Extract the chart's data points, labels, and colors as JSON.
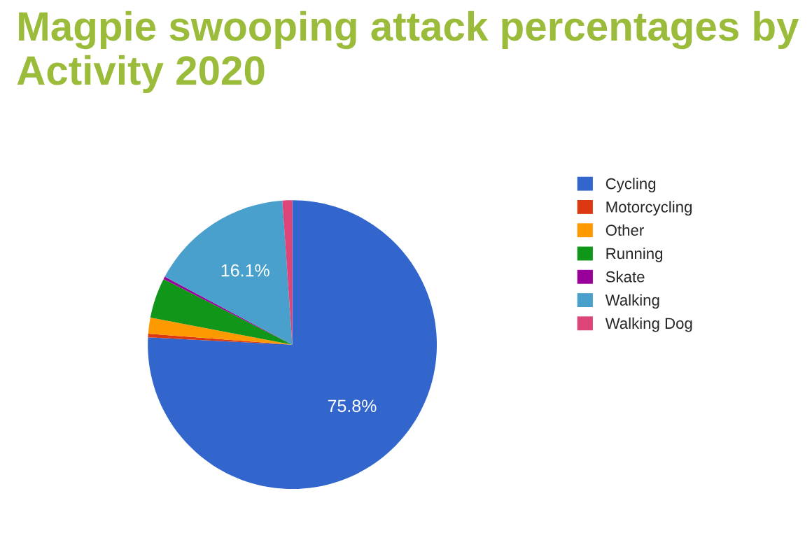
{
  "chart_data": {
    "type": "pie",
    "title": "Magpie swooping attack percentages by Activity 2020",
    "categories": [
      "Cycling",
      "Motorcycling",
      "Other",
      "Running",
      "Skate",
      "Walking",
      "Walking Dog"
    ],
    "values": [
      75.8,
      0.4,
      1.8,
      4.5,
      0.3,
      16.1,
      1.1
    ],
    "colors": [
      "#3366cc",
      "#dc3912",
      "#ff9900",
      "#109618",
      "#990099",
      "#4aa0cc",
      "#dd4477"
    ],
    "value_labels": [
      "75.8%",
      null,
      null,
      null,
      null,
      "16.1%",
      null
    ],
    "legend": "right"
  }
}
